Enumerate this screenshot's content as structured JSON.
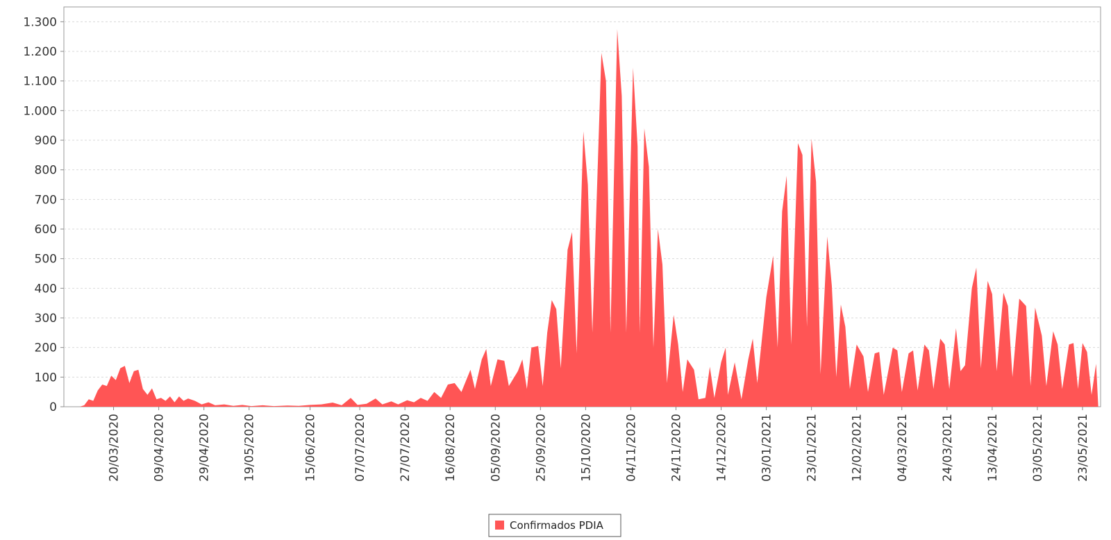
{
  "chart_data": {
    "type": "area",
    "title": "",
    "xlabel": "",
    "ylabel": "",
    "ylim": [
      0,
      1350
    ],
    "y_ticks": [
      0,
      100,
      200,
      300,
      400,
      500,
      600,
      700,
      800,
      900,
      1000,
      1100,
      1200,
      1300
    ],
    "y_tick_labels": [
      "0",
      "100",
      "200",
      "300",
      "400",
      "500",
      "600",
      "700",
      "800",
      "900",
      "1.000",
      "1.100",
      "1.200",
      "1.300"
    ],
    "x_range": [
      "2020-02-27",
      "2021-05-31"
    ],
    "x_ticks": [
      "20/03/2020",
      "09/04/2020",
      "29/04/2020",
      "19/05/2020",
      "15/06/2020",
      "07/07/2020",
      "27/07/2020",
      "16/08/2020",
      "05/09/2020",
      "25/09/2020",
      "15/10/2020",
      "04/11/2020",
      "24/11/2020",
      "14/12/2020",
      "03/01/2021",
      "23/01/2021",
      "12/02/2021",
      "04/03/2021",
      "24/03/2021",
      "13/04/2021",
      "03/05/2021",
      "23/05/2021"
    ],
    "grid": true,
    "legend_position": "bottom-center",
    "series": [
      {
        "name": "Confirmados PDIA",
        "color": "#ff5555",
        "points": [
          [
            "2020-03-05",
            0
          ],
          [
            "2020-03-07",
            5
          ],
          [
            "2020-03-09",
            25
          ],
          [
            "2020-03-11",
            20
          ],
          [
            "2020-03-13",
            55
          ],
          [
            "2020-03-15",
            75
          ],
          [
            "2020-03-17",
            70
          ],
          [
            "2020-03-19",
            105
          ],
          [
            "2020-03-21",
            90
          ],
          [
            "2020-03-23",
            130
          ],
          [
            "2020-03-25",
            138
          ],
          [
            "2020-03-27",
            80
          ],
          [
            "2020-03-29",
            120
          ],
          [
            "2020-03-31",
            125
          ],
          [
            "2020-04-02",
            60
          ],
          [
            "2020-04-04",
            40
          ],
          [
            "2020-04-06",
            62
          ],
          [
            "2020-04-08",
            25
          ],
          [
            "2020-04-10",
            30
          ],
          [
            "2020-04-12",
            20
          ],
          [
            "2020-04-14",
            35
          ],
          [
            "2020-04-16",
            15
          ],
          [
            "2020-04-18",
            35
          ],
          [
            "2020-04-20",
            20
          ],
          [
            "2020-04-22",
            28
          ],
          [
            "2020-04-25",
            20
          ],
          [
            "2020-04-28",
            8
          ],
          [
            "2020-05-01",
            15
          ],
          [
            "2020-05-04",
            5
          ],
          [
            "2020-05-08",
            8
          ],
          [
            "2020-05-12",
            3
          ],
          [
            "2020-05-16",
            6
          ],
          [
            "2020-05-20",
            2
          ],
          [
            "2020-05-25",
            5
          ],
          [
            "2020-05-30",
            2
          ],
          [
            "2020-06-05",
            4
          ],
          [
            "2020-06-10",
            3
          ],
          [
            "2020-06-15",
            6
          ],
          [
            "2020-06-20",
            8
          ],
          [
            "2020-06-25",
            14
          ],
          [
            "2020-06-29",
            5
          ],
          [
            "2020-07-03",
            30
          ],
          [
            "2020-07-06",
            6
          ],
          [
            "2020-07-10",
            10
          ],
          [
            "2020-07-14",
            28
          ],
          [
            "2020-07-17",
            8
          ],
          [
            "2020-07-21",
            18
          ],
          [
            "2020-07-24",
            8
          ],
          [
            "2020-07-28",
            22
          ],
          [
            "2020-07-31",
            15
          ],
          [
            "2020-08-03",
            30
          ],
          [
            "2020-08-06",
            20
          ],
          [
            "2020-08-09",
            50
          ],
          [
            "2020-08-12",
            30
          ],
          [
            "2020-08-15",
            75
          ],
          [
            "2020-08-18",
            80
          ],
          [
            "2020-08-21",
            50
          ],
          [
            "2020-08-25",
            125
          ],
          [
            "2020-08-27",
            60
          ],
          [
            "2020-08-30",
            160
          ],
          [
            "2020-09-01",
            195
          ],
          [
            "2020-09-03",
            70
          ],
          [
            "2020-09-06",
            160
          ],
          [
            "2020-09-09",
            155
          ],
          [
            "2020-09-11",
            70
          ],
          [
            "2020-09-15",
            120
          ],
          [
            "2020-09-17",
            160
          ],
          [
            "2020-09-19",
            60
          ],
          [
            "2020-09-21",
            200
          ],
          [
            "2020-09-24",
            205
          ],
          [
            "2020-09-26",
            70
          ],
          [
            "2020-09-28",
            250
          ],
          [
            "2020-09-30",
            360
          ],
          [
            "2020-10-02",
            330
          ],
          [
            "2020-10-04",
            130
          ],
          [
            "2020-10-07",
            530
          ],
          [
            "2020-10-09",
            590
          ],
          [
            "2020-10-11",
            180
          ],
          [
            "2020-10-14",
            930
          ],
          [
            "2020-10-16",
            750
          ],
          [
            "2020-10-18",
            250
          ],
          [
            "2020-10-22",
            1195
          ],
          [
            "2020-10-24",
            1100
          ],
          [
            "2020-10-26",
            250
          ],
          [
            "2020-10-29",
            1275
          ],
          [
            "2020-10-31",
            1050
          ],
          [
            "2020-11-02",
            250
          ],
          [
            "2020-11-05",
            1145
          ],
          [
            "2020-11-07",
            880
          ],
          [
            "2020-11-08",
            250
          ],
          [
            "2020-11-10",
            940
          ],
          [
            "2020-11-12",
            810
          ],
          [
            "2020-11-14",
            200
          ],
          [
            "2020-11-16",
            600
          ],
          [
            "2020-11-18",
            480
          ],
          [
            "2020-11-20",
            80
          ],
          [
            "2020-11-23",
            310
          ],
          [
            "2020-11-25",
            210
          ],
          [
            "2020-11-27",
            50
          ],
          [
            "2020-11-29",
            160
          ],
          [
            "2020-12-02",
            125
          ],
          [
            "2020-12-04",
            25
          ],
          [
            "2020-12-07",
            30
          ],
          [
            "2020-12-09",
            135
          ],
          [
            "2020-12-11",
            30
          ],
          [
            "2020-12-14",
            150
          ],
          [
            "2020-12-16",
            200
          ],
          [
            "2020-12-17",
            40
          ],
          [
            "2020-12-20",
            150
          ],
          [
            "2020-12-23",
            25
          ],
          [
            "2020-12-26",
            160
          ],
          [
            "2020-12-28",
            230
          ],
          [
            "2020-12-30",
            80
          ],
          [
            "2021-01-03",
            370
          ],
          [
            "2021-01-06",
            510
          ],
          [
            "2021-01-08",
            200
          ],
          [
            "2021-01-10",
            660
          ],
          [
            "2021-01-12",
            780
          ],
          [
            "2021-01-14",
            210
          ],
          [
            "2021-01-17",
            890
          ],
          [
            "2021-01-19",
            850
          ],
          [
            "2021-01-21",
            270
          ],
          [
            "2021-01-23",
            905
          ],
          [
            "2021-01-25",
            760
          ],
          [
            "2021-01-27",
            110
          ],
          [
            "2021-01-30",
            575
          ],
          [
            "2021-02-01",
            410
          ],
          [
            "2021-02-03",
            100
          ],
          [
            "2021-02-05",
            345
          ],
          [
            "2021-02-07",
            270
          ],
          [
            "2021-02-09",
            60
          ],
          [
            "2021-02-12",
            210
          ],
          [
            "2021-02-15",
            170
          ],
          [
            "2021-02-17",
            50
          ],
          [
            "2021-02-20",
            180
          ],
          [
            "2021-02-22",
            185
          ],
          [
            "2021-02-24",
            40
          ],
          [
            "2021-02-28",
            200
          ],
          [
            "2021-03-02",
            190
          ],
          [
            "2021-03-04",
            50
          ],
          [
            "2021-03-07",
            180
          ],
          [
            "2021-03-09",
            190
          ],
          [
            "2021-03-11",
            55
          ],
          [
            "2021-03-14",
            210
          ],
          [
            "2021-03-16",
            190
          ],
          [
            "2021-03-18",
            60
          ],
          [
            "2021-03-21",
            230
          ],
          [
            "2021-03-23",
            210
          ],
          [
            "2021-03-25",
            60
          ],
          [
            "2021-03-28",
            265
          ],
          [
            "2021-03-30",
            120
          ],
          [
            "2021-04-01",
            140
          ],
          [
            "2021-04-04",
            400
          ],
          [
            "2021-04-06",
            470
          ],
          [
            "2021-04-08",
            130
          ],
          [
            "2021-04-11",
            425
          ],
          [
            "2021-04-13",
            380
          ],
          [
            "2021-04-15",
            120
          ],
          [
            "2021-04-18",
            385
          ],
          [
            "2021-04-20",
            340
          ],
          [
            "2021-04-22",
            100
          ],
          [
            "2021-04-25",
            365
          ],
          [
            "2021-04-28",
            340
          ],
          [
            "2021-04-30",
            70
          ],
          [
            "2021-05-02",
            335
          ],
          [
            "2021-05-05",
            240
          ],
          [
            "2021-05-07",
            70
          ],
          [
            "2021-05-10",
            255
          ],
          [
            "2021-05-12",
            210
          ],
          [
            "2021-05-14",
            60
          ],
          [
            "2021-05-17",
            210
          ],
          [
            "2021-05-19",
            215
          ],
          [
            "2021-05-21",
            60
          ],
          [
            "2021-05-23",
            215
          ],
          [
            "2021-05-25",
            185
          ],
          [
            "2021-05-27",
            40
          ],
          [
            "2021-05-29",
            145
          ],
          [
            "2021-05-30",
            0
          ]
        ]
      }
    ]
  }
}
